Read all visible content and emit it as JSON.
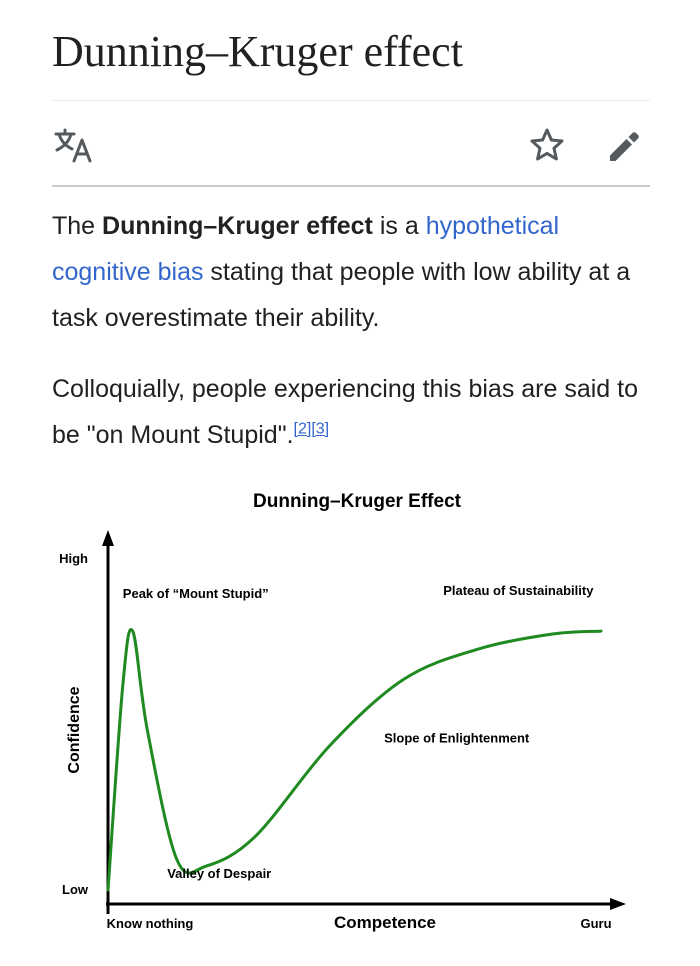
{
  "article": {
    "title": "Dunning–Kruger effect",
    "para1": {
      "prefix": "The ",
      "bold": "Dunning–Kruger effect",
      "middle": " is a ",
      "link1": "hypothetical",
      "space": " ",
      "link2": "cognitive bias",
      "suffix": " stating that people with low ability at a task overestimate their ability."
    },
    "para2": {
      "text": "Colloquially, people experiencing this bias are said to be \"on Mount Stupid\".",
      "cite1": "[2]",
      "cite2": "[3]"
    }
  },
  "toolbar": {
    "icons": [
      "translate-icon",
      "star-icon",
      "edit-pencil-icon"
    ]
  },
  "colors": {
    "link": "#3366cc",
    "curve": "#1f8a1f",
    "text": "#202122"
  },
  "chart_data": {
    "type": "line",
    "title": "Dunning–Kruger Effect",
    "xlabel": "Competence",
    "ylabel": "Confidence",
    "x_ticks": [
      "Know nothing",
      "Guru"
    ],
    "y_ticks": [
      "Low",
      "High"
    ],
    "x": [
      0,
      0.03,
      0.05,
      0.08,
      0.14,
      0.2,
      0.3,
      0.45,
      0.6,
      0.75,
      0.9,
      1.0
    ],
    "series": [
      {
        "values": [
          0.02,
          0.7,
          0.88,
          0.55,
          0.12,
          0.1,
          0.2,
          0.5,
          0.72,
          0.82,
          0.87,
          0.88
        ]
      }
    ],
    "annotations": [
      {
        "text": "Peak of “Mount Stupid”",
        "x": 0.03,
        "y": 0.99
      },
      {
        "text": "Valley of Despair",
        "x": 0.12,
        "y": 0.06
      },
      {
        "text": "Slope of Enlightenment",
        "x": 0.56,
        "y": 0.51
      },
      {
        "text": "Plateau of Sustainability",
        "x": 0.68,
        "y": 1.0
      }
    ],
    "xlim": [
      0,
      1
    ],
    "ylim": [
      0,
      1
    ],
    "grid": false
  }
}
